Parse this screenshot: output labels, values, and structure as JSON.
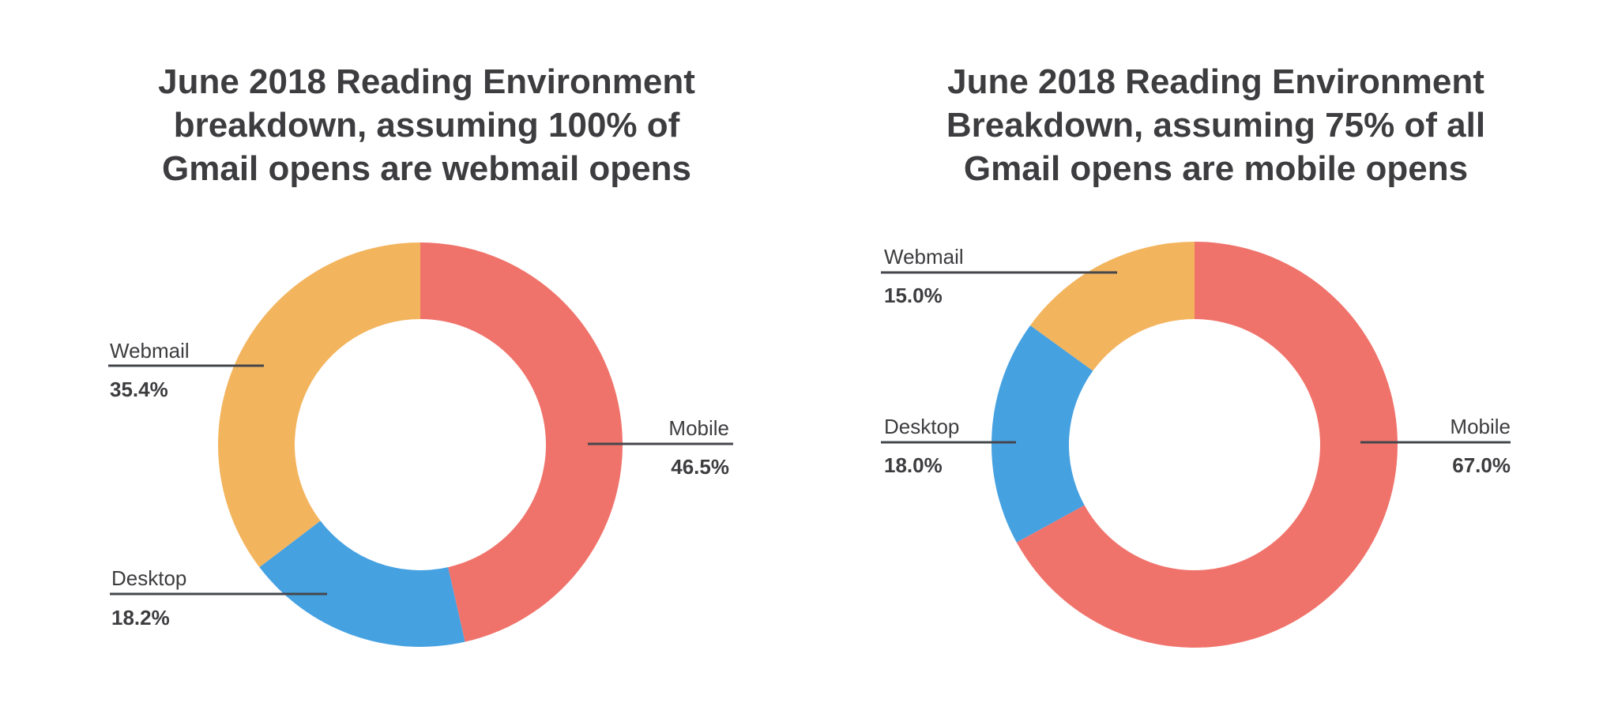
{
  "chart_data": [
    {
      "type": "pie",
      "title": "June 2018 Reading Environment breakdown, assuming 100% of Gmail opens are webmail opens",
      "title_lines": [
        "June 2018 Reading Environment",
        "breakdown, assuming 100% of",
        "Gmail opens are webmail opens"
      ],
      "categories": [
        "Mobile",
        "Desktop",
        "Webmail"
      ],
      "values": [
        46.5,
        18.2,
        35.4
      ],
      "value_labels": [
        "46.5%",
        "18.2%",
        "35.4%"
      ],
      "colors": [
        "#f0736b",
        "#46a1e1",
        "#f3b45e"
      ]
    },
    {
      "type": "pie",
      "title": "June 2018 Reading Environment Breakdown, assuming 75% of all Gmail opens are mobile opens",
      "title_lines": [
        "June 2018 Reading Environment",
        "Breakdown, assuming 75% of all",
        "Gmail opens are mobile opens"
      ],
      "categories": [
        "Mobile",
        "Desktop",
        "Webmail"
      ],
      "values": [
        67.0,
        18.0,
        15.0
      ],
      "value_labels": [
        "67.0%",
        "18.0%",
        "15.0%"
      ],
      "colors": [
        "#f0736b",
        "#46a1e1",
        "#f3b45e"
      ]
    }
  ]
}
